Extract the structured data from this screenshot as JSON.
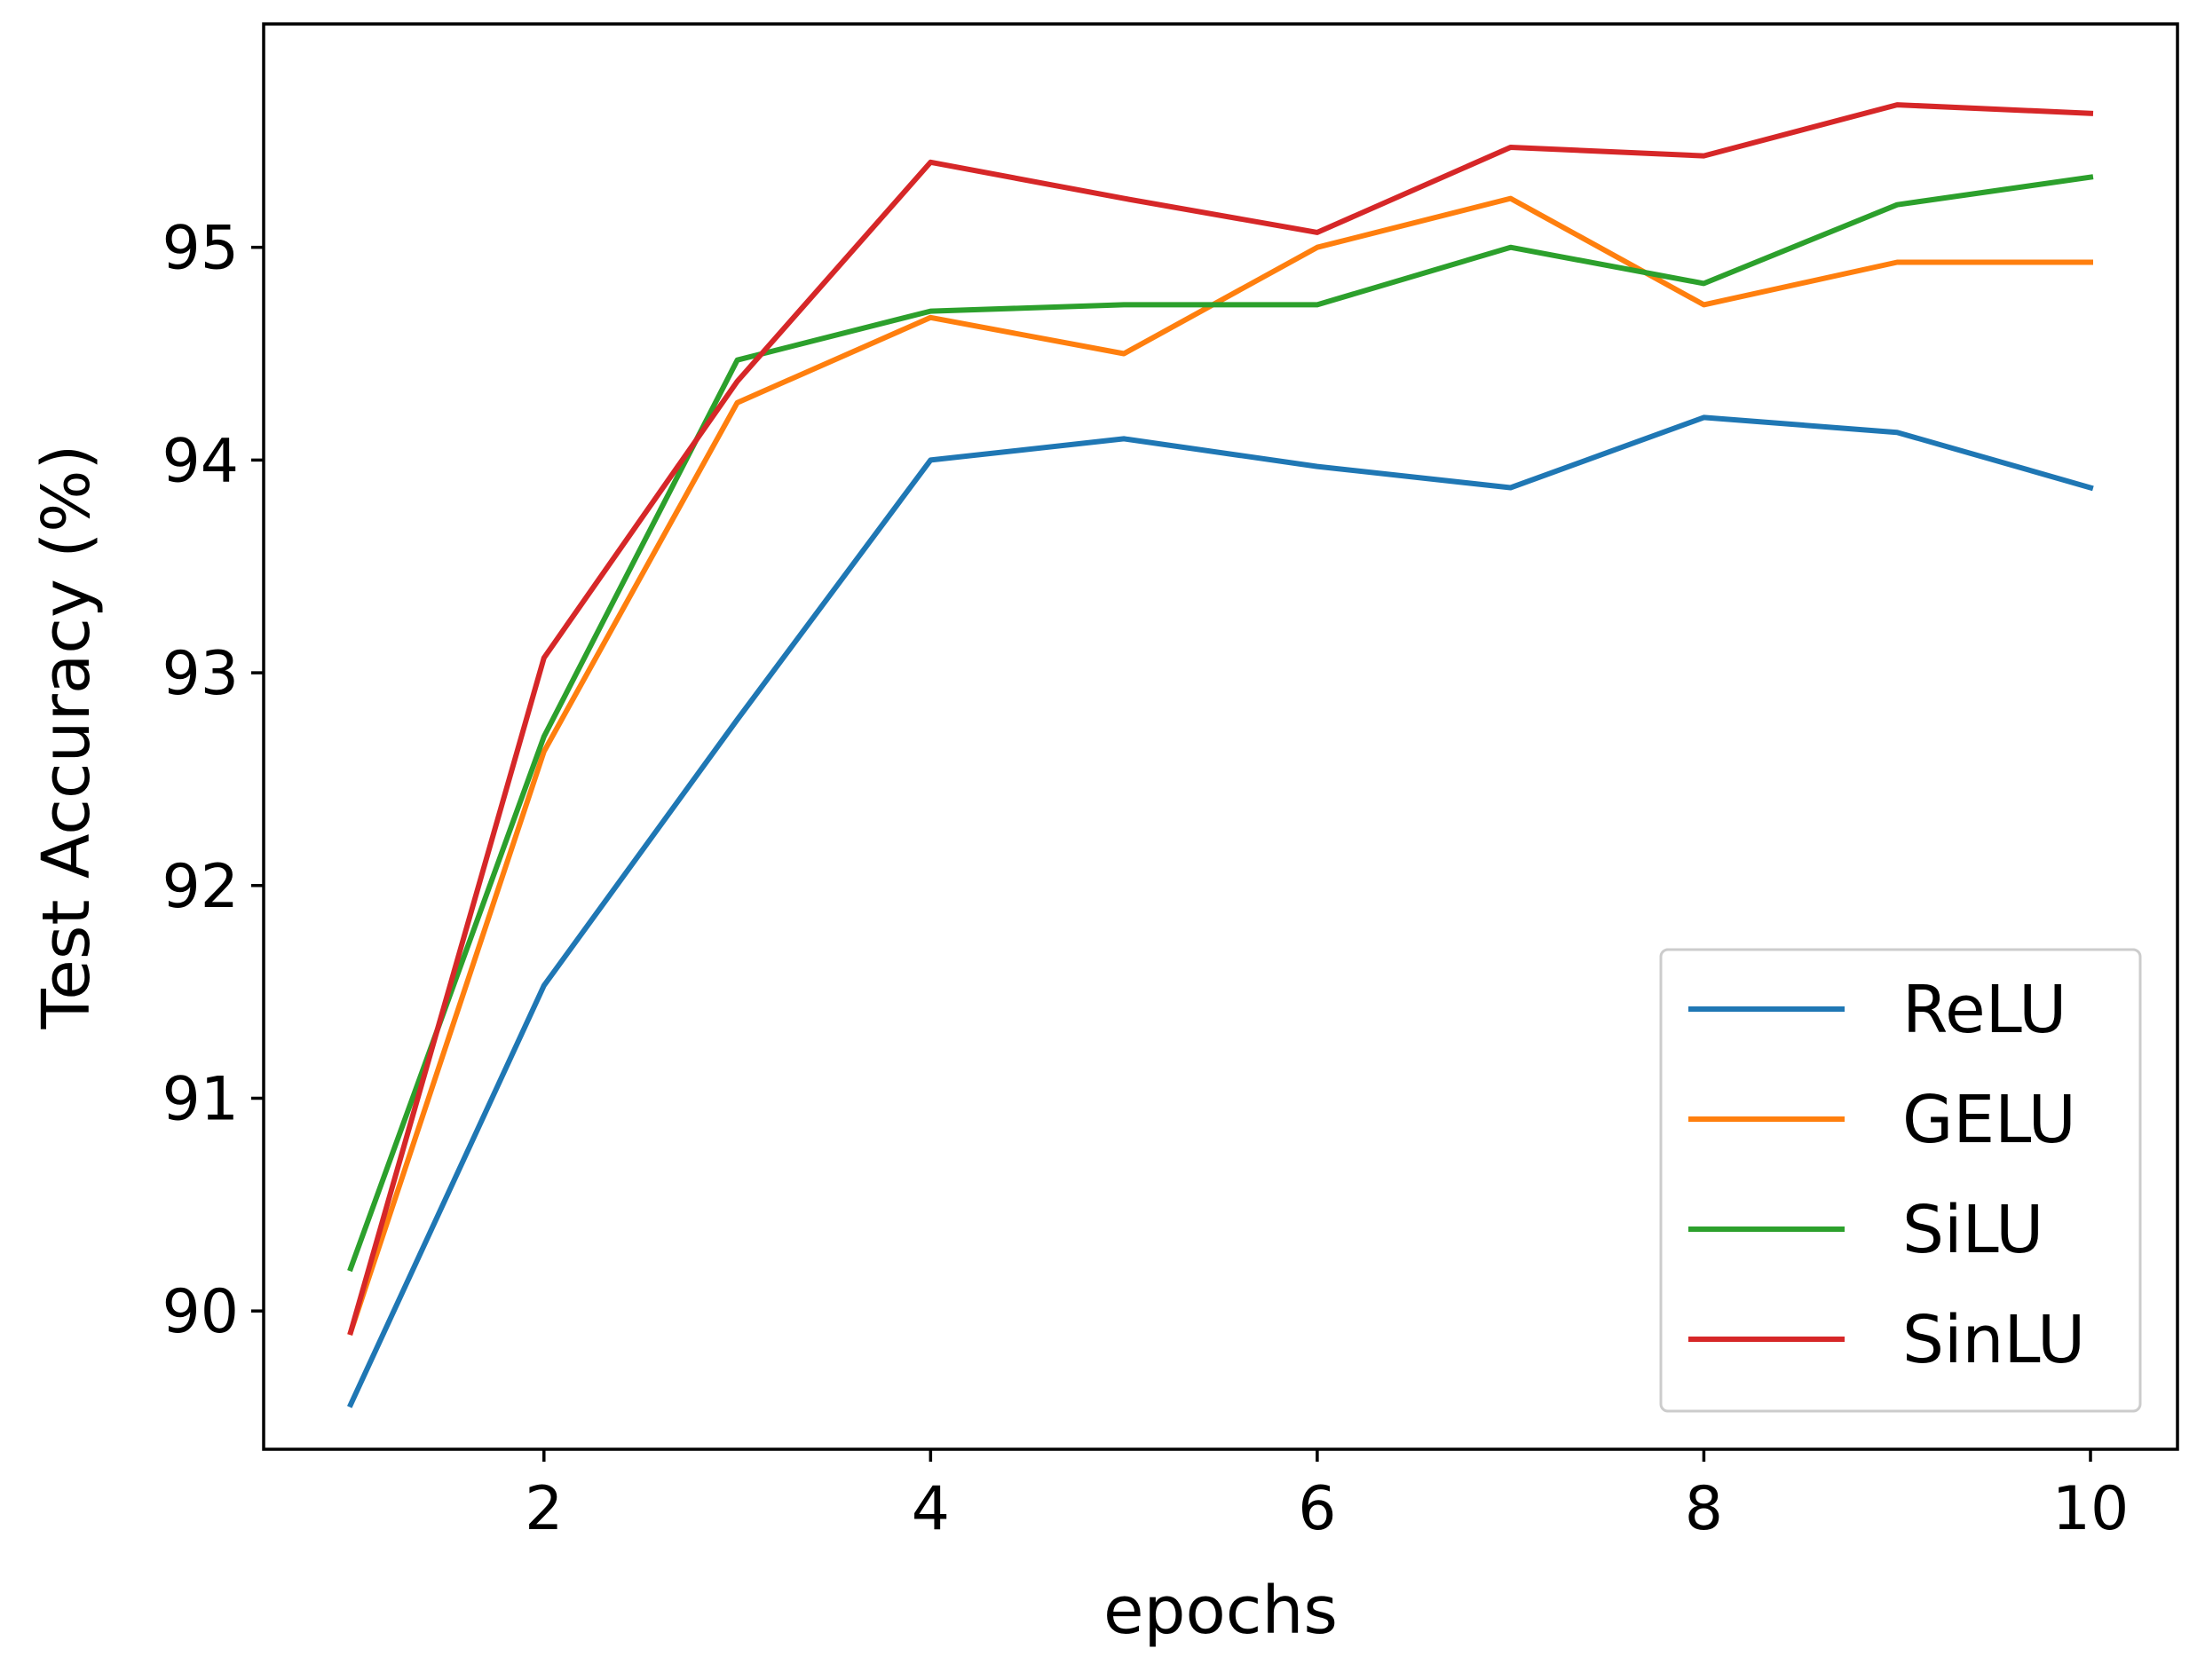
{
  "chart_data": {
    "type": "line",
    "title": "",
    "xlabel": "epochs",
    "ylabel": "Test Accuracy (%)",
    "xlim": [
      0.55,
      10.45
    ],
    "ylim": [
      89.35,
      96.05
    ],
    "xticks": [
      2,
      4,
      6,
      8,
      10
    ],
    "yticks": [
      90,
      91,
      92,
      93,
      94,
      95
    ],
    "grid": false,
    "legend_position": "lower-right",
    "x": [
      1,
      2,
      3,
      4,
      5,
      6,
      7,
      8,
      9,
      10
    ],
    "series": [
      {
        "name": "ReLU",
        "color": "#1f77b4",
        "values": [
          89.56,
          91.53,
          92.78,
          94.0,
          94.1,
          93.97,
          93.87,
          94.2,
          94.13,
          93.87
        ]
      },
      {
        "name": "GELU",
        "color": "#ff7f0e",
        "values": [
          89.9,
          92.63,
          94.27,
          94.67,
          94.5,
          95.0,
          95.23,
          94.73,
          94.93,
          94.93
        ]
      },
      {
        "name": "SiLU",
        "color": "#2ca02c",
        "values": [
          90.2,
          92.7,
          94.47,
          94.7,
          94.73,
          94.73,
          95.0,
          94.83,
          95.2,
          95.33
        ]
      },
      {
        "name": "SinLU",
        "color": "#d62728",
        "values": [
          89.9,
          93.07,
          94.37,
          95.4,
          95.23,
          95.07,
          95.47,
          95.43,
          95.67,
          95.63
        ]
      }
    ]
  }
}
